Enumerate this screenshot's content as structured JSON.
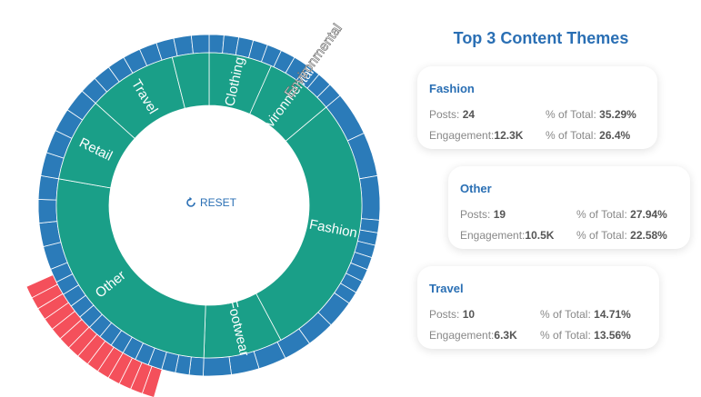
{
  "reset_label": "RESET",
  "colors": {
    "inner": "#1a9f88",
    "outer": "#2b7bb9",
    "highlight": "#f4505b",
    "accent": "#2a6fb4"
  },
  "icons": {
    "reset": "refresh-icon"
  },
  "sunburst": {
    "inner_labels": [
      "Clothing",
      "Environmental",
      "Fashion",
      "Footwear",
      "Other",
      "Retail",
      "Travel"
    ],
    "outer_labels": [
      "Environmental"
    ]
  },
  "panel": {
    "title": "Top 3 Content Themes",
    "cards": [
      {
        "name": "Fashion",
        "posts_label": "Posts:",
        "posts": "24",
        "pct_total_label": "% of Total:",
        "pct_posts": "35.29%",
        "engagement_label": "Engagement:",
        "engagement": "12.3K",
        "pct_engagement": "26.4%"
      },
      {
        "name": "Other",
        "posts_label": "Posts:",
        "posts": "19",
        "pct_total_label": "% of Total:",
        "pct_posts": "27.94%",
        "engagement_label": "Engagement:",
        "engagement": "10.5K",
        "pct_engagement": "22.58%"
      },
      {
        "name": "Travel",
        "posts_label": "Posts:",
        "posts": "10",
        "pct_total_label": "% of Total:",
        "pct_posts": "14.71%",
        "engagement_label": "Engagement:",
        "engagement": "6.3K",
        "pct_engagement": "13.56%"
      }
    ]
  }
}
